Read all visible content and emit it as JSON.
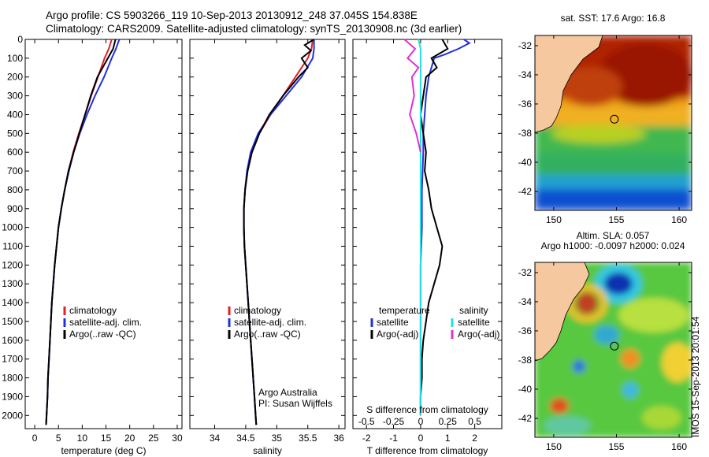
{
  "header": {
    "line1": "Argo profile: CS 5903266_119 10-Sep-2013 20130912_248 37.045S 154.838E",
    "line2": "Climatology: CARS2009. Satellite-adjusted climatology: synTS_20130908.nc (3d earlier)"
  },
  "colors": {
    "climatology": "#e0202a",
    "satellite": "#2030e0",
    "argo": "#000000",
    "argo_salinity": "#e030d0",
    "satellite_salinity": "#20e0e0",
    "land": "#f5c8a0"
  },
  "chart_data": [
    {
      "type": "line",
      "panel": "temperature",
      "xlabel": "temperature (deg C)",
      "ylabel": "",
      "xlim": [
        -2,
        31
      ],
      "ylim": [
        2070,
        0
      ],
      "xticks": [
        "0",
        "5",
        "10",
        "15",
        "20",
        "25",
        "30"
      ],
      "yticks": [
        "0",
        "100",
        "200",
        "300",
        "400",
        "500",
        "600",
        "700",
        "800",
        "900",
        "1000",
        "1100",
        "1200",
        "1300",
        "1400",
        "1500",
        "1600",
        "1700",
        "1800",
        "1900",
        "2000"
      ],
      "legend": [
        "climatology",
        "satellite-adj. clim.",
        "Argo(..raw -QC)"
      ],
      "series": [
        {
          "name": "climatology",
          "depth": [
            0,
            50,
            100,
            200,
            300,
            400,
            500,
            600,
            700,
            800,
            900,
            1000,
            1100,
            1200,
            1300,
            1400,
            1500,
            1600,
            1700,
            1800,
            1900,
            2000,
            2050
          ],
          "values": [
            16.2,
            15.6,
            14.7,
            13.3,
            11.9,
            10.6,
            9.3,
            8.1,
            7.1,
            6.3,
            5.6,
            5.0,
            4.6,
            4.2,
            3.9,
            3.6,
            3.4,
            3.2,
            3.0,
            2.8,
            2.7,
            2.5,
            2.4
          ]
        },
        {
          "name": "satellite-adj. clim.",
          "depth": [
            0,
            50,
            100,
            200,
            300,
            400,
            500,
            600,
            700,
            800,
            900,
            1000,
            1100,
            1200,
            1300,
            1400,
            1500,
            1600,
            1700,
            1800,
            1900,
            2000,
            2050
          ],
          "values": [
            17.8,
            17.1,
            16.2,
            14.6,
            12.7,
            11.0,
            9.5,
            8.2,
            7.2,
            6.3,
            5.6,
            5.0,
            4.6,
            4.2,
            3.9,
            3.6,
            3.4,
            3.2,
            3.0,
            2.8,
            2.7,
            2.5,
            2.4
          ]
        },
        {
          "name": "Argo(..raw -QC)",
          "depth": [
            0,
            50,
            100,
            200,
            300,
            400,
            500,
            600,
            700,
            800,
            900,
            1000,
            1100,
            1200,
            1300,
            1400,
            1500,
            1600,
            1700,
            1800,
            1900,
            2000,
            2050
          ],
          "values": [
            17.0,
            16.5,
            15.4,
            13.2,
            11.8,
            10.6,
            9.4,
            8.2,
            7.1,
            6.3,
            5.6,
            5.0,
            4.6,
            4.2,
            3.9,
            3.6,
            3.4,
            3.2,
            3.0,
            2.8,
            2.7,
            2.5,
            2.4
          ]
        }
      ]
    },
    {
      "type": "line",
      "panel": "salinity",
      "xlabel": "salinity",
      "xlim": [
        33.6,
        36.1
      ],
      "ylim": [
        2070,
        0
      ],
      "xticks": [
        "34",
        "34.5",
        "35",
        "35.5",
        "36"
      ],
      "legend": [
        "climatology",
        "satellite-adj. clim.",
        "Argo(..raw -QC)"
      ],
      "annotation": [
        "Argo Australia",
        "PI: Susan Wijffels"
      ],
      "series": [
        {
          "name": "climatology",
          "depth": [
            0,
            50,
            100,
            200,
            300,
            400,
            500,
            600,
            700,
            800,
            900,
            1000,
            1100,
            1200,
            1300,
            1400,
            1500,
            1600,
            1700,
            1800,
            1900,
            2000,
            2050
          ],
          "values": [
            35.58,
            35.56,
            35.5,
            35.3,
            35.1,
            34.9,
            34.72,
            34.6,
            34.53,
            34.49,
            34.47,
            34.47,
            34.48,
            34.5,
            34.52,
            34.54,
            34.56,
            34.58,
            34.6,
            34.62,
            34.64,
            34.66,
            34.67
          ]
        },
        {
          "name": "satellite-adj. clim.",
          "depth": [
            0,
            50,
            100,
            200,
            300,
            400,
            500,
            600,
            700,
            800,
            900,
            1000,
            1100,
            1200,
            1300,
            1400,
            1500,
            1600,
            1700,
            1800,
            1900,
            2000,
            2050
          ],
          "values": [
            35.6,
            35.6,
            35.58,
            35.4,
            35.15,
            34.9,
            34.7,
            34.58,
            34.52,
            34.49,
            34.47,
            34.47,
            34.48,
            34.5,
            34.52,
            34.54,
            34.56,
            34.58,
            34.6,
            34.62,
            34.64,
            34.66,
            34.67
          ]
        },
        {
          "name": "Argo(..raw -QC)",
          "depth": [
            0,
            30,
            60,
            100,
            150,
            200,
            300,
            400,
            500,
            600,
            700,
            800,
            900,
            1000,
            1100,
            1200,
            1300,
            1400,
            1500,
            1600,
            1700,
            1800,
            1900,
            2000,
            2050
          ],
          "values": [
            35.6,
            35.45,
            35.55,
            35.4,
            35.5,
            35.35,
            35.1,
            34.88,
            34.72,
            34.6,
            34.53,
            34.49,
            34.47,
            34.47,
            34.48,
            34.5,
            34.52,
            34.54,
            34.56,
            34.58,
            34.6,
            34.62,
            34.64,
            34.66,
            34.67
          ]
        }
      ]
    },
    {
      "type": "line",
      "panel": "difference",
      "xlabel": "T difference from climatology",
      "xlabel2": "S difference from climatology",
      "xlim": [
        -2.5,
        3
      ],
      "ylim": [
        2070,
        0
      ],
      "xticks": [
        "-2",
        "-1",
        "0",
        "1",
        "2"
      ],
      "xticks2": [
        "-0.5",
        "-0.25",
        "0",
        "0.25",
        "0.5"
      ],
      "legend_temperature": [
        "temperature",
        "satellite",
        "Argo(-adj)"
      ],
      "legend_salinity": [
        "salinity",
        "satellite",
        "Argo(-adj)"
      ],
      "series": [
        {
          "name": "satellite",
          "quantity": "T",
          "depth": [
            0,
            20,
            50,
            80,
            100,
            150,
            200,
            300,
            400,
            500,
            600,
            800,
            1000,
            1200,
            1400,
            1600,
            1800,
            2000
          ],
          "values": [
            1.6,
            1.8,
            1.4,
            0.9,
            0.5,
            0.4,
            0.3,
            0.2,
            0.15,
            0.1,
            0.1,
            0.05,
            0.05,
            0.0,
            0.0,
            0.0,
            0.0,
            0.0
          ]
        },
        {
          "name": "Argo(-adj)",
          "quantity": "T",
          "depth": [
            0,
            50,
            100,
            150,
            200,
            300,
            400,
            500,
            600,
            700,
            800,
            900,
            1000,
            1100,
            1200,
            1300,
            1400,
            1500,
            1600,
            1700,
            1800,
            1900,
            2000
          ],
          "values": [
            0.8,
            1.0,
            0.4,
            0.6,
            0.2,
            0.1,
            0.0,
            0.1,
            0.2,
            0.15,
            0.3,
            0.4,
            0.6,
            0.8,
            0.7,
            0.5,
            0.3,
            0.2,
            0.1,
            0.05,
            0.05,
            0.0,
            0.0
          ]
        },
        {
          "name": "satellite",
          "quantity": "S",
          "depth": [
            0,
            50,
            100,
            200,
            400,
            600,
            800,
            1000,
            1500,
            2000
          ],
          "values": [
            -0.02,
            0.0,
            0.0,
            0.0,
            0.0,
            0.0,
            0.0,
            0.0,
            0.0,
            0.0
          ]
        },
        {
          "name": "Argo(-adj)",
          "quantity": "S",
          "depth": [
            0,
            50,
            100,
            150,
            200,
            300,
            400,
            500,
            600
          ],
          "values": [
            -0.15,
            -0.05,
            -0.12,
            -0.02,
            -0.08,
            -0.06,
            -0.1,
            -0.04,
            0.0
          ]
        }
      ]
    },
    {
      "type": "heatmap",
      "panel": "sst-map",
      "title": "sat. SST: 17.6 Argo: 16.8",
      "xticks": [
        "150",
        "155",
        "160"
      ],
      "yticks": [
        "-32",
        "-34",
        "-36",
        "-38",
        "-40",
        "-42"
      ],
      "xlim": [
        148.5,
        161
      ],
      "ylim": [
        -43.3,
        -31.3
      ],
      "marker": {
        "lon": 154.838,
        "lat": -37.045
      }
    },
    {
      "type": "heatmap",
      "panel": "sla-map",
      "title": "Altim. SLA: 0.057",
      "subtitle": "Argo h1000: -0.0097 h2000: 0.024",
      "xticks": [
        "150",
        "155",
        "160"
      ],
      "yticks": [
        "-32",
        "-34",
        "-36",
        "-38",
        "-40",
        "-42"
      ],
      "xlim": [
        148.5,
        161
      ],
      "ylim": [
        -43.3,
        -31.3
      ],
      "marker": {
        "lon": 154.838,
        "lat": -37.045
      }
    }
  ],
  "footer_stamp": "IMOS 15-Sep-2013 20:01:54"
}
